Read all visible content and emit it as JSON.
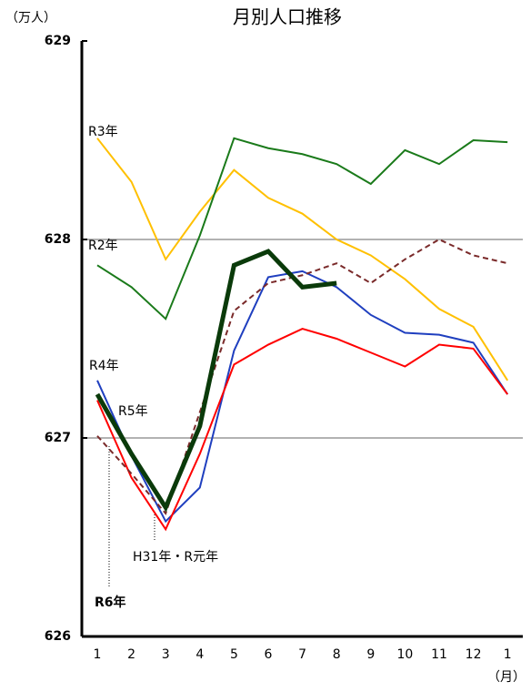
{
  "chart_data": {
    "type": "line",
    "title": "月別人口推移",
    "y_unit": "（万人）",
    "x_unit": "（月）",
    "categories": [
      "1",
      "2",
      "3",
      "4",
      "5",
      "6",
      "7",
      "8",
      "9",
      "10",
      "11",
      "12",
      "1"
    ],
    "ylim": [
      626,
      629
    ],
    "yticks": [
      626,
      627,
      628,
      629
    ],
    "grid": true,
    "series": [
      {
        "name": "R3年",
        "color": "#ffc000",
        "values": [
          628.51,
          628.29,
          627.9,
          628.14,
          628.35,
          628.21,
          628.13,
          628.0,
          627.92,
          627.8,
          627.65,
          627.56,
          627.29
        ]
      },
      {
        "name": "R2年",
        "color": "#1a7a1a",
        "values": [
          627.87,
          627.76,
          627.6,
          628.02,
          628.51,
          628.46,
          628.43,
          628.38,
          628.28,
          628.45,
          628.38,
          628.5,
          628.49
        ]
      },
      {
        "name": "R4年",
        "color": "#1f3fbf",
        "values": [
          627.29,
          626.91,
          626.58,
          626.75,
          627.44,
          627.81,
          627.84,
          627.76,
          627.62,
          627.53,
          627.52,
          627.48,
          627.22
        ]
      },
      {
        "name": "R5年",
        "color": "#ff0000",
        "values": [
          627.19,
          626.8,
          626.54,
          626.92,
          627.37,
          627.47,
          627.55,
          627.5,
          627.43,
          627.36,
          627.47,
          627.45,
          627.22
        ]
      },
      {
        "name": "H31年・R元年",
        "color": "#7a2a2a",
        "dashed": true,
        "values": [
          627.01,
          626.82,
          626.62,
          627.13,
          627.64,
          627.78,
          627.82,
          627.88,
          627.78,
          627.9,
          628.0,
          627.92,
          627.88
        ]
      },
      {
        "name": "R6年",
        "color": "#0a3a0a",
        "bold": true,
        "values": [
          627.22,
          626.92,
          626.65,
          627.06,
          627.87,
          627.94,
          627.76,
          627.78,
          null,
          null,
          null,
          null,
          null
        ]
      }
    ]
  }
}
